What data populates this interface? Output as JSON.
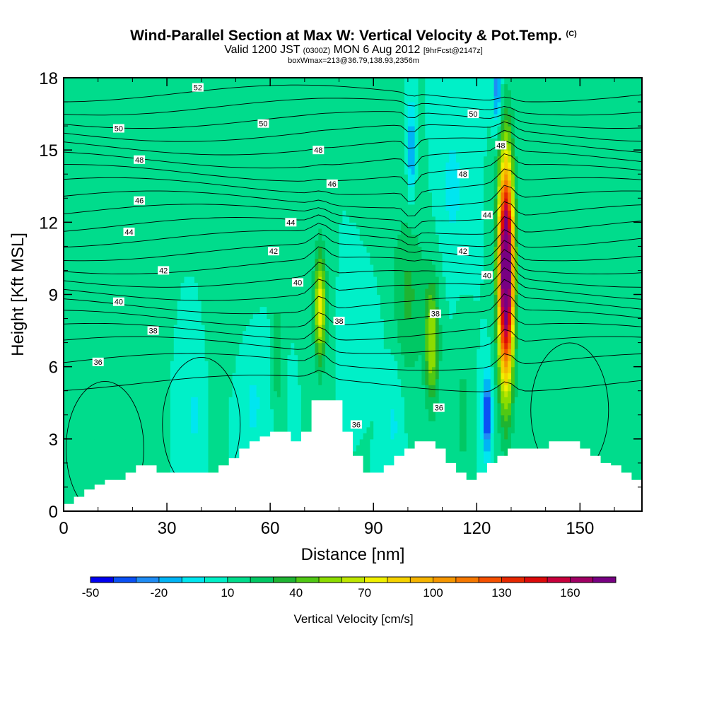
{
  "header": {
    "title_main": "Wind-Parallel Section at Max W: Vertical Velocity & Pot.Temp.",
    "title_mark": "(C)",
    "valid_prefix": "Valid 1200 JST",
    "valid_utc": "(0300Z)",
    "valid_date": "MON 6 Aug 2012",
    "forecast_info": "[9hrFcst@2147z]",
    "subtitle": "boxWmax=213@36.79,138.93,2356m"
  },
  "chart_data": {
    "type": "heatmap",
    "xlabel": "Distance [nm]",
    "ylabel": "Height [Kft MSL]",
    "xlim": [
      0,
      168
    ],
    "ylim": [
      0,
      18
    ],
    "x_ticks": [
      0,
      30,
      60,
      90,
      120,
      150
    ],
    "y_ticks": [
      0,
      3,
      6,
      9,
      12,
      15,
      18
    ],
    "colorbar": {
      "label": "Vertical Velocity [cm/s]",
      "tick_labels": [
        "-50",
        "-20",
        "10",
        "40",
        "70",
        "100",
        "130",
        "160"
      ],
      "levels": [
        -50,
        -40,
        -30,
        -20,
        -10,
        0,
        10,
        20,
        30,
        40,
        50,
        60,
        70,
        80,
        90,
        100,
        110,
        120,
        130,
        140,
        150,
        160,
        170,
        180
      ],
      "colors": [
        "#0000f0",
        "#0a50f5",
        "#1e8cf5",
        "#00b4f5",
        "#00e6f0",
        "#00f0c8",
        "#00dc8c",
        "#00c864",
        "#1eb432",
        "#50c814",
        "#8cdc00",
        "#bee600",
        "#f0f000",
        "#f5d200",
        "#f5b400",
        "#f59600",
        "#f57800",
        "#f55000",
        "#e62800",
        "#dc0a0a",
        "#c8003c",
        "#a00064",
        "#780082"
      ]
    },
    "background_velocity": 10,
    "velocity_features": [
      {
        "x": 128.5,
        "z": 10.0,
        "value": 213,
        "desc": "main updraft core"
      },
      {
        "x": 74.5,
        "z": 8.5,
        "value": 75,
        "desc": "updraft"
      },
      {
        "x": 107,
        "z": 7.0,
        "value": 60,
        "desc": "updraft"
      },
      {
        "x": 123,
        "z": 4.0,
        "value": -45,
        "desc": "downdraft"
      },
      {
        "x": 101,
        "z": 15.0,
        "value": -25,
        "desc": "downdraft aloft"
      },
      {
        "x": 126,
        "z": 17.5,
        "value": -30,
        "desc": "downdraft aloft"
      }
    ],
    "theta_contours": {
      "levels_labeled": [
        "36",
        "38",
        "40",
        "42",
        "44",
        "46",
        "48",
        "50",
        "52"
      ],
      "labels": [
        {
          "text": "52",
          "x": 39,
          "y": 17.6
        },
        {
          "text": "50",
          "x": 16,
          "y": 15.9
        },
        {
          "text": "50",
          "x": 58,
          "y": 16.1
        },
        {
          "text": "50",
          "x": 119,
          "y": 16.5
        },
        {
          "text": "48",
          "x": 22,
          "y": 14.6
        },
        {
          "text": "48",
          "x": 74,
          "y": 15.0
        },
        {
          "text": "48",
          "x": 127,
          "y": 15.2
        },
        {
          "text": "48",
          "x": 116,
          "y": 14.0
        },
        {
          "text": "46",
          "x": 22,
          "y": 12.9
        },
        {
          "text": "46",
          "x": 78,
          "y": 13.6
        },
        {
          "text": "44",
          "x": 19,
          "y": 11.6
        },
        {
          "text": "44",
          "x": 66,
          "y": 12.0
        },
        {
          "text": "44",
          "x": 123,
          "y": 12.3
        },
        {
          "text": "42",
          "x": 29,
          "y": 10.0
        },
        {
          "text": "42",
          "x": 61,
          "y": 10.8
        },
        {
          "text": "42",
          "x": 116,
          "y": 10.8
        },
        {
          "text": "40",
          "x": 16,
          "y": 8.7
        },
        {
          "text": "40",
          "x": 68,
          "y": 9.5
        },
        {
          "text": "40",
          "x": 123,
          "y": 9.8
        },
        {
          "text": "38",
          "x": 26,
          "y": 7.5
        },
        {
          "text": "38",
          "x": 80,
          "y": 7.9
        },
        {
          "text": "38",
          "x": 108,
          "y": 8.2
        },
        {
          "text": "36",
          "x": 10,
          "y": 6.2
        },
        {
          "text": "36",
          "x": 85,
          "y": 3.6
        },
        {
          "text": "36",
          "x": 109,
          "y": 4.3
        }
      ]
    },
    "terrain": {
      "x": [
        0,
        3,
        6,
        9,
        12,
        15,
        18,
        21,
        24,
        27,
        30,
        33,
        36,
        39,
        42,
        45,
        48,
        51,
        54,
        57,
        60,
        63,
        66,
        69,
        72,
        75,
        78,
        81,
        84,
        87,
        90,
        93,
        96,
        99,
        102,
        105,
        108,
        111,
        114,
        117,
        120,
        123,
        126,
        129,
        132,
        135,
        138,
        141,
        144,
        147,
        150,
        153,
        156,
        159,
        162,
        165,
        168
      ],
      "z": [
        0.3,
        0.6,
        0.9,
        1.1,
        1.3,
        1.3,
        1.6,
        1.9,
        1.9,
        1.6,
        1.6,
        1.6,
        1.6,
        1.6,
        1.6,
        1.9,
        2.2,
        2.6,
        2.9,
        3.1,
        3.3,
        3.3,
        2.9,
        3.3,
        4.6,
        4.6,
        4.6,
        3.3,
        2.3,
        1.6,
        1.6,
        1.9,
        2.3,
        2.6,
        2.9,
        2.9,
        2.6,
        2.0,
        1.6,
        1.3,
        1.6,
        2.0,
        2.3,
        2.6,
        2.6,
        2.6,
        2.6,
        2.9,
        2.9,
        2.9,
        2.6,
        2.3,
        2.0,
        1.9,
        1.6,
        1.3,
        1.3
      ]
    }
  }
}
